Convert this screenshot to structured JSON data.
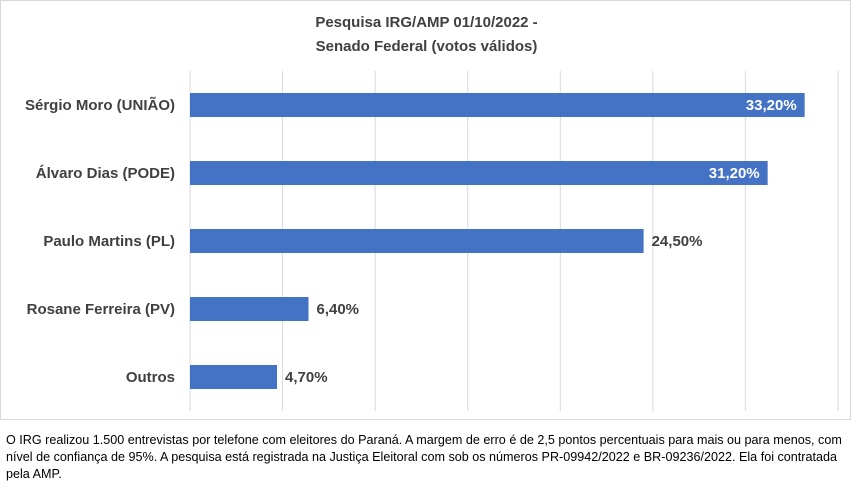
{
  "chart_data": {
    "type": "bar",
    "orientation": "horizontal",
    "title": [
      "Pesquisa IRG/AMP 01/10/2022 -",
      "Senado Federal (votos válidos)"
    ],
    "categories": [
      "Sérgio Moro (UNIÃO)",
      "Álvaro Dias (PODE)",
      "Paulo Martins (PL)",
      "Rosane Ferreira (PV)",
      "Outros"
    ],
    "values": [
      33.2,
      31.2,
      24.5,
      6.4,
      4.7
    ],
    "value_labels": [
      "33,20%",
      "31,20%",
      "24,50%",
      "6,40%",
      "4,70%"
    ],
    "xlim": [
      0,
      35
    ],
    "grid": "vertical",
    "legend": "none",
    "bar_color": "#4472c4"
  },
  "footnote": "O IRG realizou 1.500 entrevistas por telefone com eleitores do Paraná. A margem de erro é de 2,5 pontos percentuais para mais ou para menos, com nível de confiança de 95%. A pesquisa está registrada na Justiça Eleitoral com sob os números PR-09942/2022 e BR-09236/2022. Ela foi contratada pela AMP."
}
